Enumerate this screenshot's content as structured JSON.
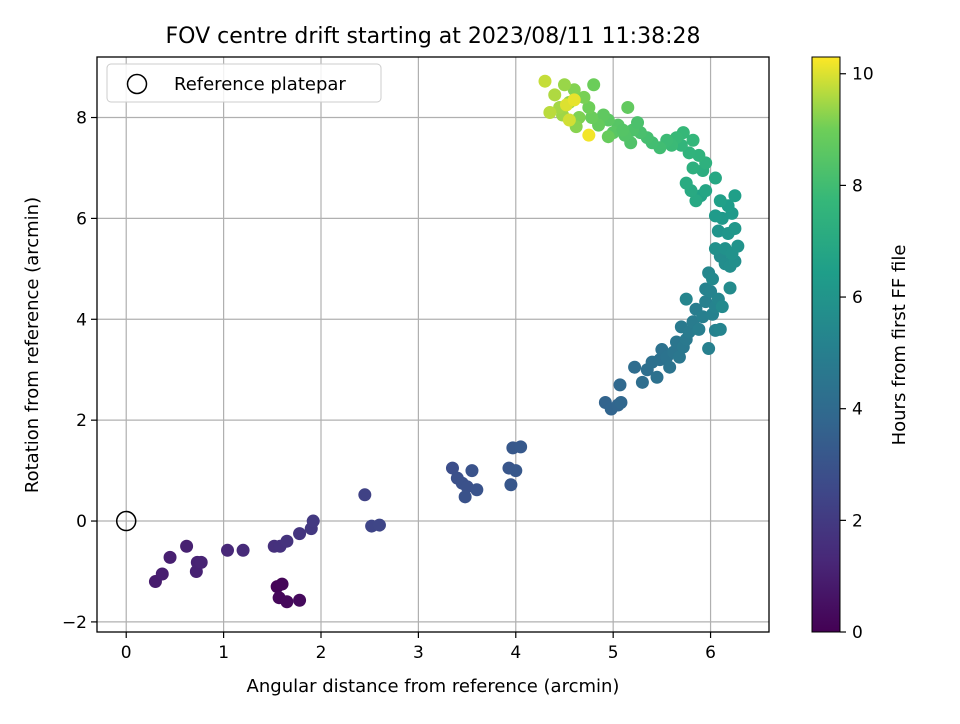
{
  "chart_data": {
    "type": "scatter",
    "title": "FOV centre drift starting at 2023/08/11 11:38:28",
    "xlabel": "Angular distance from reference (arcmin)",
    "ylabel": "Rotation from reference (arcmin)",
    "xlim": [
      -0.3,
      6.6
    ],
    "ylim": [
      -2.2,
      9.2
    ],
    "xticks": [
      0,
      1,
      2,
      3,
      4,
      5,
      6
    ],
    "yticks": [
      -2,
      0,
      2,
      4,
      6,
      8
    ],
    "grid": true,
    "legend": {
      "position": "top-left",
      "entries": [
        "Reference platepar"
      ]
    },
    "reference_point": {
      "x": 0.0,
      "y": 0.0,
      "label": "Reference platepar"
    },
    "colorbar": {
      "label": "Hours from first FF file",
      "colormap": "viridis",
      "range": [
        0,
        10.3
      ],
      "ticks": [
        0,
        2,
        4,
        6,
        8,
        10
      ]
    },
    "points": [
      {
        "x": 1.55,
        "y": -1.3,
        "c": 0.1
      },
      {
        "x": 1.6,
        "y": -1.25,
        "c": 0.15
      },
      {
        "x": 1.57,
        "y": -1.52,
        "c": 0.2
      },
      {
        "x": 1.65,
        "y": -1.6,
        "c": 0.25
      },
      {
        "x": 1.78,
        "y": -1.57,
        "c": 0.3
      },
      {
        "x": 0.3,
        "y": -1.2,
        "c": 0.9
      },
      {
        "x": 0.37,
        "y": -1.05,
        "c": 0.95
      },
      {
        "x": 0.45,
        "y": -0.72,
        "c": 1.0
      },
      {
        "x": 0.62,
        "y": -0.5,
        "c": 1.05
      },
      {
        "x": 0.72,
        "y": -1.0,
        "c": 1.1
      },
      {
        "x": 0.73,
        "y": -0.82,
        "c": 1.1
      },
      {
        "x": 0.77,
        "y": -0.82,
        "c": 1.15
      },
      {
        "x": 1.04,
        "y": -0.58,
        "c": 1.3
      },
      {
        "x": 1.2,
        "y": -0.58,
        "c": 1.4
      },
      {
        "x": 1.52,
        "y": -0.5,
        "c": 1.6
      },
      {
        "x": 1.58,
        "y": -0.5,
        "c": 1.65
      },
      {
        "x": 1.65,
        "y": -0.4,
        "c": 1.7
      },
      {
        "x": 1.78,
        "y": -0.25,
        "c": 1.8
      },
      {
        "x": 1.9,
        "y": -0.15,
        "c": 1.9
      },
      {
        "x": 1.92,
        "y": 0.0,
        "c": 1.95
      },
      {
        "x": 2.45,
        "y": 0.52,
        "c": 2.3
      },
      {
        "x": 2.52,
        "y": -0.1,
        "c": 2.4
      },
      {
        "x": 2.6,
        "y": -0.08,
        "c": 2.45
      },
      {
        "x": 3.35,
        "y": 1.05,
        "c": 2.8
      },
      {
        "x": 3.4,
        "y": 0.85,
        "c": 2.85
      },
      {
        "x": 3.45,
        "y": 0.75,
        "c": 2.9
      },
      {
        "x": 3.5,
        "y": 0.68,
        "c": 2.9
      },
      {
        "x": 3.48,
        "y": 0.48,
        "c": 2.95
      },
      {
        "x": 3.55,
        "y": 1.0,
        "c": 3.0
      },
      {
        "x": 3.6,
        "y": 0.62,
        "c": 3.0
      },
      {
        "x": 3.93,
        "y": 1.05,
        "c": 3.1
      },
      {
        "x": 3.95,
        "y": 0.72,
        "c": 3.15
      },
      {
        "x": 3.97,
        "y": 1.45,
        "c": 3.2
      },
      {
        "x": 4.0,
        "y": 1.0,
        "c": 3.2
      },
      {
        "x": 4.05,
        "y": 1.47,
        "c": 3.25
      },
      {
        "x": 4.92,
        "y": 2.35,
        "c": 3.7
      },
      {
        "x": 4.98,
        "y": 2.22,
        "c": 3.75
      },
      {
        "x": 5.05,
        "y": 2.3,
        "c": 3.8
      },
      {
        "x": 5.08,
        "y": 2.35,
        "c": 3.85
      },
      {
        "x": 5.07,
        "y": 2.7,
        "c": 3.9
      },
      {
        "x": 5.22,
        "y": 3.05,
        "c": 4.1
      },
      {
        "x": 5.3,
        "y": 2.75,
        "c": 4.15
      },
      {
        "x": 5.35,
        "y": 3.0,
        "c": 4.2
      },
      {
        "x": 5.4,
        "y": 3.15,
        "c": 4.25
      },
      {
        "x": 5.45,
        "y": 2.85,
        "c": 4.3
      },
      {
        "x": 5.48,
        "y": 3.2,
        "c": 4.3
      },
      {
        "x": 5.5,
        "y": 3.4,
        "c": 4.35
      },
      {
        "x": 5.55,
        "y": 3.25,
        "c": 4.4
      },
      {
        "x": 5.58,
        "y": 3.05,
        "c": 4.45
      },
      {
        "x": 5.62,
        "y": 3.35,
        "c": 4.5
      },
      {
        "x": 5.65,
        "y": 3.55,
        "c": 4.55
      },
      {
        "x": 5.68,
        "y": 3.25,
        "c": 4.6
      },
      {
        "x": 5.72,
        "y": 3.45,
        "c": 4.65
      },
      {
        "x": 5.75,
        "y": 3.6,
        "c": 4.7
      },
      {
        "x": 5.7,
        "y": 3.85,
        "c": 4.75
      },
      {
        "x": 5.78,
        "y": 3.75,
        "c": 4.8
      },
      {
        "x": 5.82,
        "y": 3.95,
        "c": 4.85
      },
      {
        "x": 5.85,
        "y": 4.2,
        "c": 4.9
      },
      {
        "x": 5.88,
        "y": 3.8,
        "c": 4.95
      },
      {
        "x": 5.92,
        "y": 4.05,
        "c": 5.0
      },
      {
        "x": 5.95,
        "y": 4.35,
        "c": 5.05
      },
      {
        "x": 5.98,
        "y": 3.42,
        "c": 5.05
      },
      {
        "x": 6.02,
        "y": 4.1,
        "c": 5.1
      },
      {
        "x": 6.05,
        "y": 3.78,
        "c": 5.1
      },
      {
        "x": 5.95,
        "y": 4.6,
        "c": 5.15
      },
      {
        "x": 6.0,
        "y": 4.55,
        "c": 5.2
      },
      {
        "x": 6.05,
        "y": 4.25,
        "c": 5.2
      },
      {
        "x": 6.1,
        "y": 3.8,
        "c": 5.25
      },
      {
        "x": 6.08,
        "y": 4.4,
        "c": 5.3
      },
      {
        "x": 5.75,
        "y": 4.4,
        "c": 5.3
      },
      {
        "x": 5.98,
        "y": 4.92,
        "c": 5.4
      },
      {
        "x": 6.02,
        "y": 4.8,
        "c": 5.45
      },
      {
        "x": 6.12,
        "y": 4.25,
        "c": 5.5
      },
      {
        "x": 6.2,
        "y": 4.62,
        "c": 5.55
      },
      {
        "x": 6.1,
        "y": 5.25,
        "c": 5.6
      },
      {
        "x": 6.15,
        "y": 5.1,
        "c": 5.65
      },
      {
        "x": 6.2,
        "y": 5.05,
        "c": 5.7
      },
      {
        "x": 6.25,
        "y": 5.15,
        "c": 5.75
      },
      {
        "x": 6.05,
        "y": 5.4,
        "c": 5.8
      },
      {
        "x": 6.15,
        "y": 5.4,
        "c": 5.85
      },
      {
        "x": 6.22,
        "y": 5.3,
        "c": 5.9
      },
      {
        "x": 6.28,
        "y": 5.45,
        "c": 5.95
      },
      {
        "x": 6.08,
        "y": 5.75,
        "c": 6.0
      },
      {
        "x": 6.18,
        "y": 5.7,
        "c": 6.05
      },
      {
        "x": 6.25,
        "y": 5.8,
        "c": 6.1
      },
      {
        "x": 6.12,
        "y": 6.0,
        "c": 6.2
      },
      {
        "x": 6.22,
        "y": 6.1,
        "c": 6.25
      },
      {
        "x": 6.05,
        "y": 6.05,
        "c": 6.3
      },
      {
        "x": 6.18,
        "y": 6.25,
        "c": 6.4
      },
      {
        "x": 6.25,
        "y": 6.45,
        "c": 6.5
      },
      {
        "x": 6.1,
        "y": 6.35,
        "c": 6.55
      },
      {
        "x": 5.9,
        "y": 6.45,
        "c": 6.7
      },
      {
        "x": 5.95,
        "y": 6.55,
        "c": 6.8
      },
      {
        "x": 6.05,
        "y": 6.8,
        "c": 6.9
      },
      {
        "x": 5.85,
        "y": 6.35,
        "c": 6.95
      },
      {
        "x": 5.8,
        "y": 6.55,
        "c": 7.0
      },
      {
        "x": 5.75,
        "y": 6.7,
        "c": 7.1
      },
      {
        "x": 5.92,
        "y": 6.95,
        "c": 7.2
      },
      {
        "x": 5.82,
        "y": 7.0,
        "c": 7.3
      },
      {
        "x": 5.95,
        "y": 7.1,
        "c": 7.35
      },
      {
        "x": 5.88,
        "y": 7.25,
        "c": 7.45
      },
      {
        "x": 5.78,
        "y": 7.3,
        "c": 7.5
      },
      {
        "x": 5.7,
        "y": 7.45,
        "c": 7.6
      },
      {
        "x": 5.82,
        "y": 7.55,
        "c": 7.65
      },
      {
        "x": 5.72,
        "y": 7.7,
        "c": 7.75
      },
      {
        "x": 5.65,
        "y": 7.6,
        "c": 7.8
      },
      {
        "x": 5.6,
        "y": 7.45,
        "c": 7.85
      },
      {
        "x": 5.55,
        "y": 7.55,
        "c": 7.9
      },
      {
        "x": 5.48,
        "y": 7.4,
        "c": 8.0
      },
      {
        "x": 5.4,
        "y": 7.5,
        "c": 8.05
      },
      {
        "x": 5.35,
        "y": 7.6,
        "c": 8.1
      },
      {
        "x": 5.28,
        "y": 7.7,
        "c": 8.2
      },
      {
        "x": 5.2,
        "y": 7.75,
        "c": 8.3
      },
      {
        "x": 5.18,
        "y": 7.5,
        "c": 8.35
      },
      {
        "x": 5.12,
        "y": 7.65,
        "c": 8.4
      },
      {
        "x": 5.05,
        "y": 7.85,
        "c": 8.5
      },
      {
        "x": 5.0,
        "y": 7.7,
        "c": 8.55
      },
      {
        "x": 4.95,
        "y": 7.95,
        "c": 8.6
      },
      {
        "x": 4.9,
        "y": 8.05,
        "c": 8.7
      },
      {
        "x": 5.15,
        "y": 8.2,
        "c": 8.75
      },
      {
        "x": 4.85,
        "y": 7.85,
        "c": 8.8
      },
      {
        "x": 4.95,
        "y": 7.62,
        "c": 8.85
      },
      {
        "x": 4.78,
        "y": 8.0,
        "c": 8.9
      },
      {
        "x": 4.8,
        "y": 8.65,
        "c": 8.95
      },
      {
        "x": 4.75,
        "y": 8.2,
        "c": 9.0
      },
      {
        "x": 4.7,
        "y": 8.4,
        "c": 9.1
      },
      {
        "x": 4.65,
        "y": 8.0,
        "c": 9.15
      },
      {
        "x": 4.6,
        "y": 8.55,
        "c": 9.2
      },
      {
        "x": 4.62,
        "y": 7.82,
        "c": 9.25
      },
      {
        "x": 4.55,
        "y": 8.3,
        "c": 9.3
      },
      {
        "x": 4.5,
        "y": 8.65,
        "c": 9.4
      },
      {
        "x": 4.48,
        "y": 8.05,
        "c": 9.45
      },
      {
        "x": 4.45,
        "y": 8.2,
        "c": 9.5
      },
      {
        "x": 4.4,
        "y": 8.45,
        "c": 9.6
      },
      {
        "x": 4.35,
        "y": 8.1,
        "c": 9.7
      },
      {
        "x": 4.3,
        "y": 8.72,
        "c": 9.8
      },
      {
        "x": 4.55,
        "y": 7.95,
        "c": 9.9
      },
      {
        "x": 4.52,
        "y": 8.25,
        "c": 10.0
      },
      {
        "x": 4.6,
        "y": 8.35,
        "c": 10.1
      },
      {
        "x": 4.75,
        "y": 7.65,
        "c": 10.2
      },
      {
        "x": 5.1,
        "y": 7.75,
        "c": 8.45
      },
      {
        "x": 5.25,
        "y": 7.9,
        "c": 8.25
      }
    ]
  }
}
